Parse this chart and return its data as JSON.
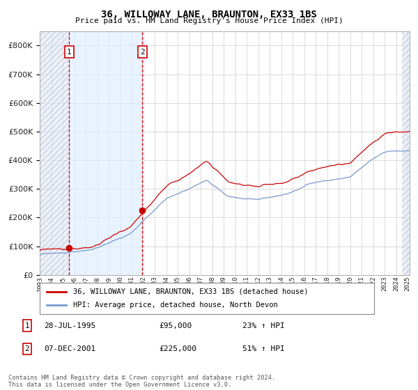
{
  "title": "36, WILLOWAY LANE, BRAUNTON, EX33 1BS",
  "subtitle": "Price paid vs. HM Land Registry's House Price Index (HPI)",
  "sale1_date": "28-JUL-1995",
  "sale1_price": 95000,
  "sale1_label": "1",
  "sale1_pct": "23% ↑ HPI",
  "sale2_date": "07-DEC-2001",
  "sale2_price": 225000,
  "sale2_label": "2",
  "sale2_pct": "51% ↑ HPI",
  "legend1": "36, WILLOWAY LANE, BRAUNTON, EX33 1BS (detached house)",
  "legend2": "HPI: Average price, detached house, North Devon",
  "footnote": "Contains HM Land Registry data © Crown copyright and database right 2024.\nThis data is licensed under the Open Government Licence v3.0.",
  "hpi_color": "#7799cc",
  "price_color": "#cc0000",
  "shade_color": "#ddeeff",
  "vline_color": "#cc0000",
  "grid_color": "#cccccc",
  "ylim": [
    0,
    850000
  ],
  "yticks": [
    0,
    100000,
    200000,
    300000,
    400000,
    500000,
    600000,
    700000,
    800000
  ],
  "sale1_x": 1995.57,
  "sale2_x": 2001.92,
  "xmin": 1993.0,
  "xmax": 2025.17
}
